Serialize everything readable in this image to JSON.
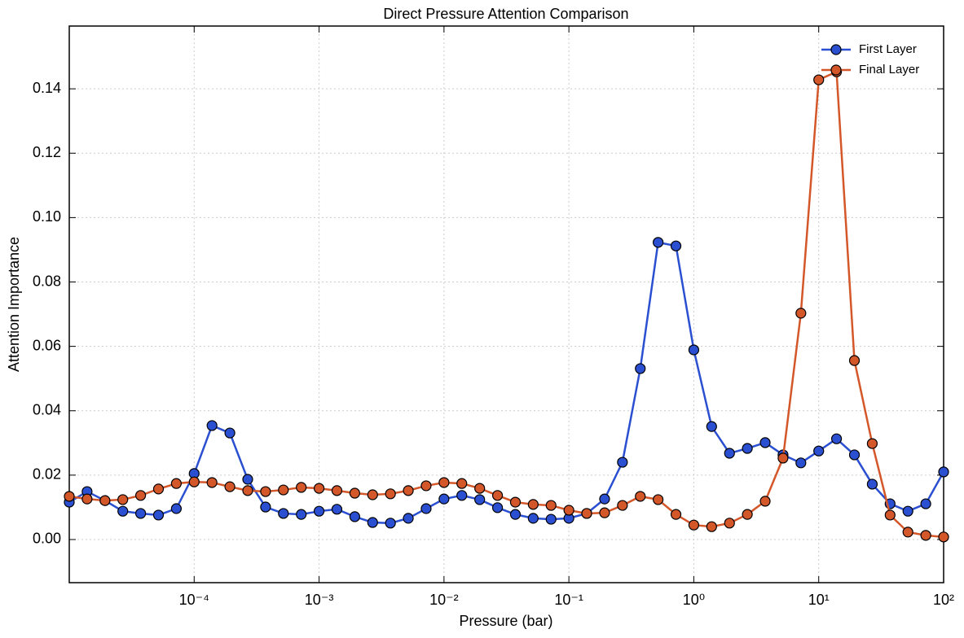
{
  "chart_data": {
    "type": "line",
    "title": "Direct Pressure Attention Comparison",
    "xlabel": "Pressure (bar)",
    "ylabel": "Attention Importance",
    "xscale": "log",
    "grid": true,
    "legend": "upper right",
    "xlim": [
      1e-05,
      100
    ],
    "ylim": [
      -0.0134,
      0.1595
    ],
    "xticks": [
      {
        "value": 0.0001,
        "label": "10⁻⁴"
      },
      {
        "value": 0.001,
        "label": "10⁻³"
      },
      {
        "value": 0.01,
        "label": "10⁻²"
      },
      {
        "value": 0.1,
        "label": "10⁻¹"
      },
      {
        "value": 1,
        "label": "10⁰"
      },
      {
        "value": 10,
        "label": "10¹"
      },
      {
        "value": 100,
        "label": "10²"
      }
    ],
    "yticks": [
      {
        "value": 0,
        "label": "0.00"
      },
      {
        "value": 0.02,
        "label": "0.02"
      },
      {
        "value": 0.04,
        "label": "0.04"
      },
      {
        "value": 0.06,
        "label": "0.06"
      },
      {
        "value": 0.08,
        "label": "0.08"
      },
      {
        "value": 0.1,
        "label": "0.10"
      },
      {
        "value": 0.12,
        "label": "0.12"
      },
      {
        "value": 0.14,
        "label": "0.14"
      }
    ],
    "x": [
      1e-05,
      1.389e-05,
      1.931e-05,
      2.683e-05,
      3.728e-05,
      5.179e-05,
      7.197e-05,
      0.0001,
      0.0001389,
      0.0001931,
      0.0002683,
      0.0003728,
      0.0005179,
      0.0007197,
      0.001,
      0.001389,
      0.001931,
      0.002683,
      0.003728,
      0.005179,
      0.007197,
      0.01,
      0.01389,
      0.01931,
      0.02683,
      0.03728,
      0.05179,
      0.07197,
      0.1,
      0.1389,
      0.1931,
      0.2683,
      0.3728,
      0.5179,
      0.7197,
      1,
      1.389,
      1.931,
      2.683,
      3.728,
      5.179,
      7.197,
      10,
      13.89,
      19.31,
      26.83,
      37.28,
      51.79,
      71.97,
      100
    ],
    "series": [
      {
        "name": "First Layer",
        "color": "#2a4fd0",
        "values": [
          0.0116,
          0.0149,
          0.0121,
          0.0088,
          0.0081,
          0.0076,
          0.0096,
          0.0205,
          0.0354,
          0.0331,
          0.0187,
          0.0101,
          0.0081,
          0.0078,
          0.0088,
          0.0094,
          0.0071,
          0.0053,
          0.0051,
          0.0066,
          0.0096,
          0.0126,
          0.0137,
          0.0124,
          0.0099,
          0.0078,
          0.0066,
          0.0063,
          0.0066,
          0.0081,
          0.0126,
          0.024,
          0.0531,
          0.0923,
          0.0912,
          0.0589,
          0.0351,
          0.0268,
          0.0283,
          0.0301,
          0.0263,
          0.0238,
          0.0275,
          0.0313,
          0.0263,
          0.0172,
          0.0111,
          0.0088,
          0.0111,
          0.021
        ]
      },
      {
        "name": "Final Layer",
        "color": "#d4572a",
        "values": [
          0.0134,
          0.0126,
          0.0121,
          0.0124,
          0.0137,
          0.0157,
          0.0174,
          0.0179,
          0.0177,
          0.0164,
          0.0152,
          0.0149,
          0.0154,
          0.0162,
          0.0159,
          0.0152,
          0.0144,
          0.0139,
          0.0142,
          0.0152,
          0.0167,
          0.0177,
          0.0174,
          0.0159,
          0.0137,
          0.0116,
          0.0109,
          0.0106,
          0.0091,
          0.0081,
          0.0083,
          0.0106,
          0.0134,
          0.0124,
          0.0078,
          0.0045,
          0.004,
          0.0051,
          0.0078,
          0.0119,
          0.0253,
          0.0703,
          0.1428,
          0.1453,
          0.0556,
          0.0298,
          0.0076,
          0.0023,
          0.0013,
          0.0008
        ]
      }
    ]
  }
}
